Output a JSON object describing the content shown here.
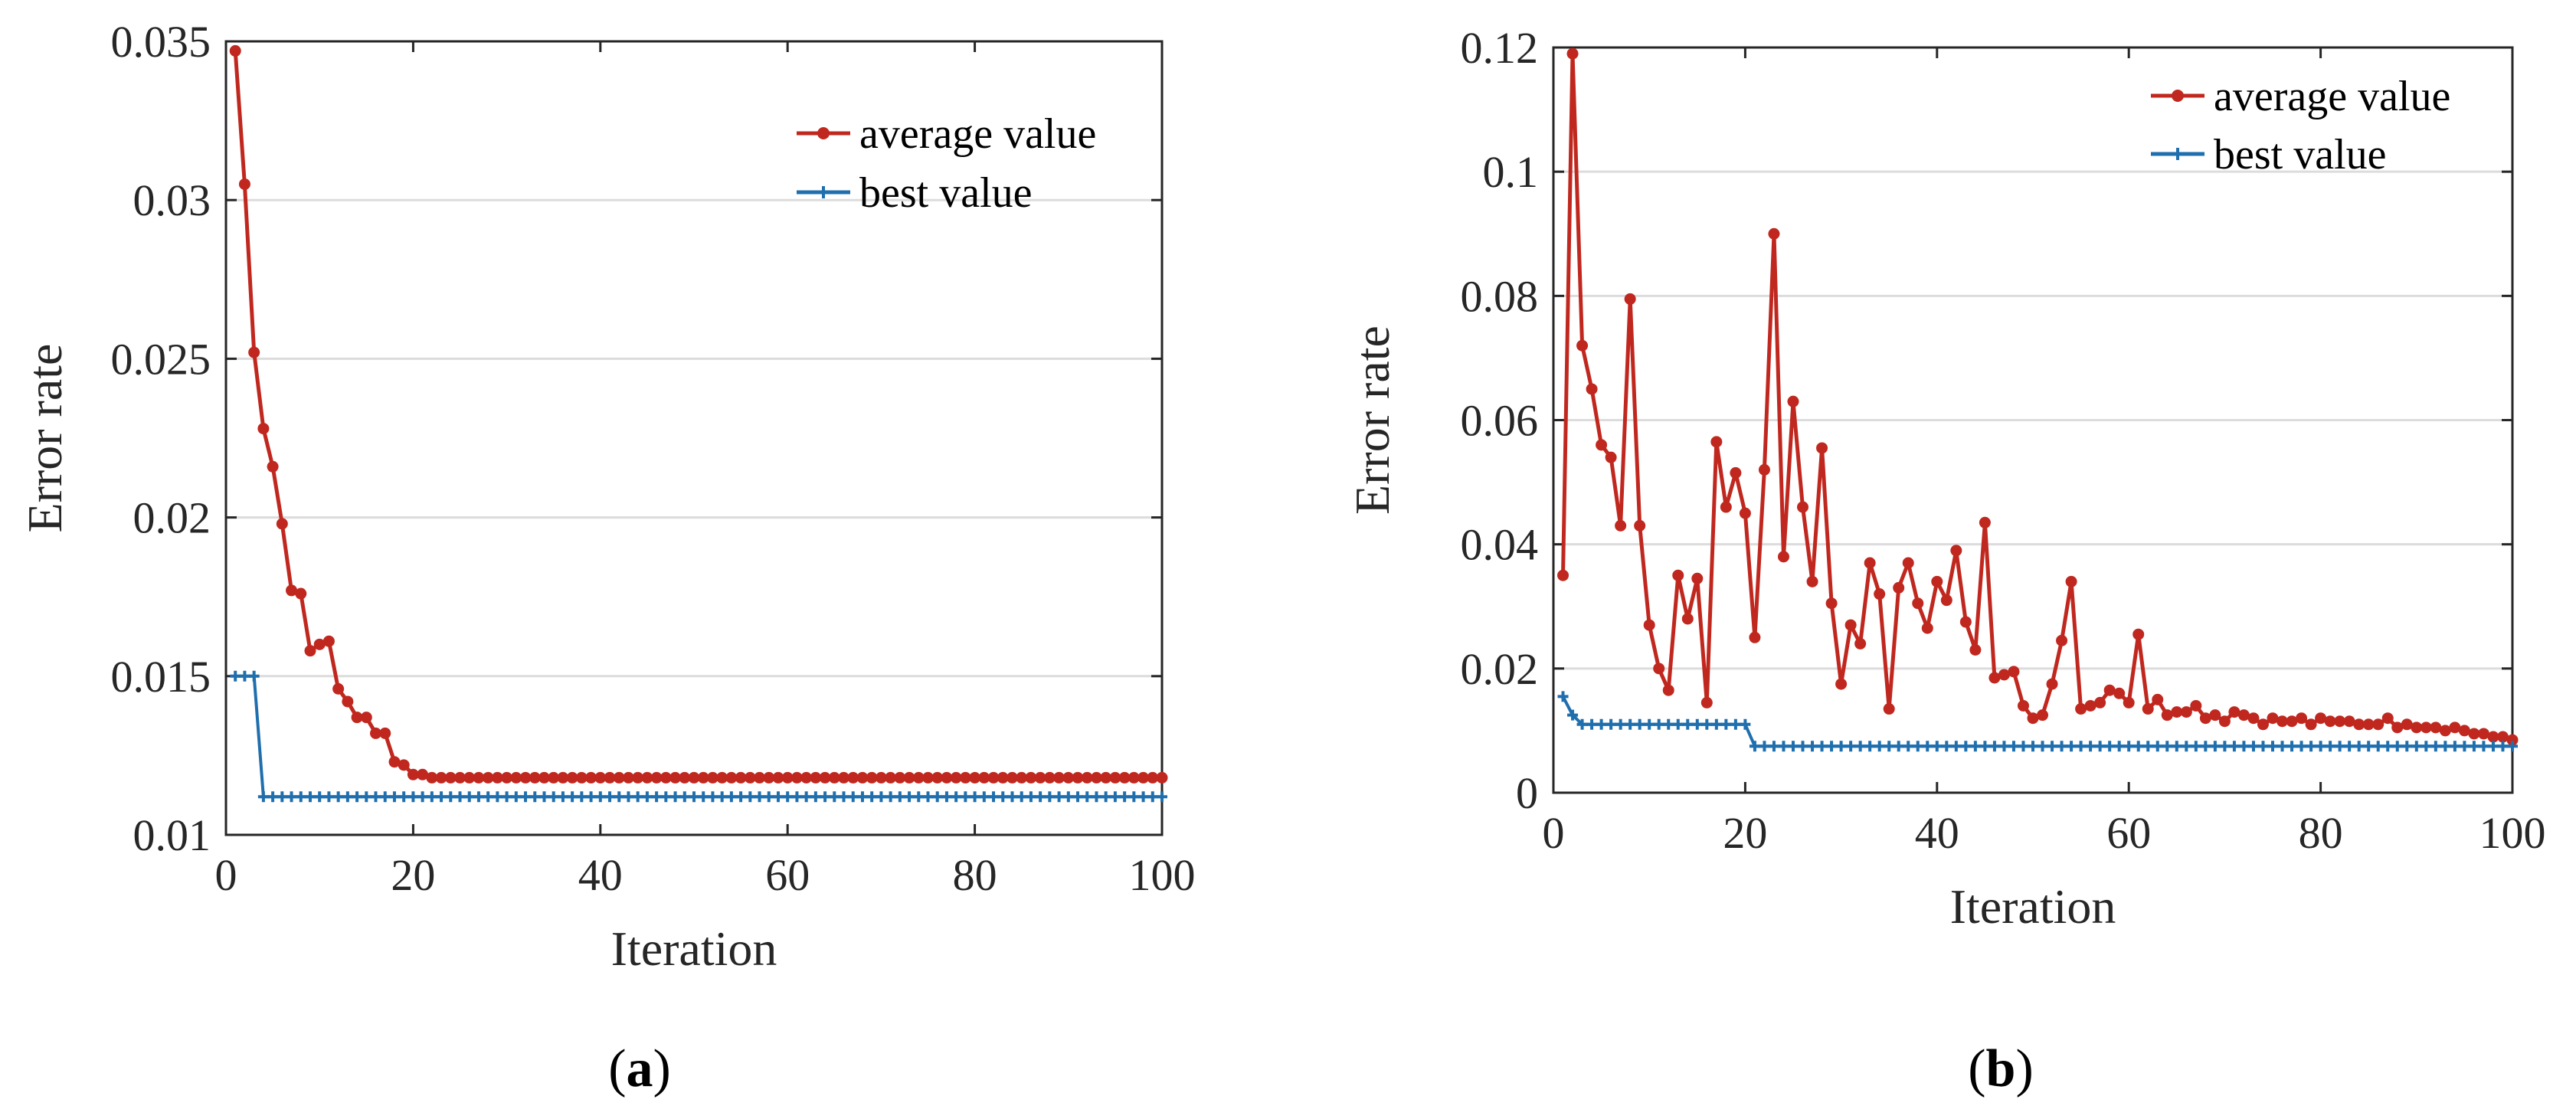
{
  "chart_data": [
    {
      "type": "line",
      "caption_letter": "a",
      "xlabel": "Iteration",
      "ylabel": "Error rate",
      "xlim": [
        0,
        100
      ],
      "ylim": [
        0.01,
        0.035
      ],
      "xticks": [
        "0",
        "20",
        "40",
        "60",
        "80",
        "100"
      ],
      "yticks": [
        "0.01",
        "0.015",
        "0.02",
        "0.025",
        "0.03",
        "0.035"
      ],
      "grid": "horizontal",
      "legend_position": "top-right",
      "series": [
        {
          "name": "average value",
          "color": "#C0281F",
          "marker": "dot",
          "x": [
            1,
            2,
            3,
            4,
            5,
            6,
            7,
            8,
            9,
            10,
            11,
            12,
            13,
            14,
            15,
            16,
            17,
            18,
            19,
            20,
            21,
            22,
            23,
            24,
            25,
            26,
            27,
            28,
            29,
            30,
            31,
            32,
            33,
            34,
            35,
            36,
            37,
            38,
            39,
            40,
            41,
            42,
            43,
            44,
            45,
            46,
            47,
            48,
            49,
            50,
            51,
            52,
            53,
            54,
            55,
            56,
            57,
            58,
            59,
            60,
            61,
            62,
            63,
            64,
            65,
            66,
            67,
            68,
            69,
            70,
            71,
            72,
            73,
            74,
            75,
            76,
            77,
            78,
            79,
            80,
            81,
            82,
            83,
            84,
            85,
            86,
            87,
            88,
            89,
            90,
            91,
            92,
            93,
            94,
            95,
            96,
            97,
            98,
            99,
            100
          ],
          "y": [
            0.0347,
            0.0305,
            0.0252,
            0.0228,
            0.0216,
            0.0198,
            0.0177,
            0.0176,
            0.0158,
            0.016,
            0.0161,
            0.0146,
            0.0142,
            0.0137,
            0.0137,
            0.0132,
            0.0132,
            0.0123,
            0.0122,
            0.0119,
            0.0119,
            0.0118,
            0.0118,
            0.0118,
            0.0118,
            0.0118,
            0.0118,
            0.0118,
            0.0118,
            0.0118,
            0.0118,
            0.0118,
            0.0118,
            0.0118,
            0.0118,
            0.0118,
            0.0118,
            0.0118,
            0.0118,
            0.0118,
            0.0118,
            0.0118,
            0.0118,
            0.0118,
            0.0118,
            0.0118,
            0.0118,
            0.0118,
            0.0118,
            0.0118,
            0.0118,
            0.0118,
            0.0118,
            0.0118,
            0.0118,
            0.0118,
            0.0118,
            0.0118,
            0.0118,
            0.0118,
            0.0118,
            0.0118,
            0.0118,
            0.0118,
            0.0118,
            0.0118,
            0.0118,
            0.0118,
            0.0118,
            0.0118,
            0.0118,
            0.0118,
            0.0118,
            0.0118,
            0.0118,
            0.0118,
            0.0118,
            0.0118,
            0.0118,
            0.0118,
            0.0118,
            0.0118,
            0.0118,
            0.0118,
            0.0118,
            0.0118,
            0.0118,
            0.0118,
            0.0118,
            0.0118,
            0.0118,
            0.0118,
            0.0118,
            0.0118,
            0.0118,
            0.0118,
            0.0118,
            0.0118,
            0.0118,
            0.0118
          ]
        },
        {
          "name": "best value",
          "color": "#1F6FAE",
          "marker": "plus",
          "x": [
            1,
            2,
            3,
            4,
            5,
            6,
            7,
            8,
            9,
            10,
            11,
            12,
            13,
            14,
            15,
            16,
            17,
            18,
            19,
            20,
            21,
            22,
            23,
            24,
            25,
            26,
            27,
            28,
            29,
            30,
            31,
            32,
            33,
            34,
            35,
            36,
            37,
            38,
            39,
            40,
            41,
            42,
            43,
            44,
            45,
            46,
            47,
            48,
            49,
            50,
            51,
            52,
            53,
            54,
            55,
            56,
            57,
            58,
            59,
            60,
            61,
            62,
            63,
            64,
            65,
            66,
            67,
            68,
            69,
            70,
            71,
            72,
            73,
            74,
            75,
            76,
            77,
            78,
            79,
            80,
            81,
            82,
            83,
            84,
            85,
            86,
            87,
            88,
            89,
            90,
            91,
            92,
            93,
            94,
            95,
            96,
            97,
            98,
            99,
            100
          ],
          "y": [
            0.015,
            0.015,
            0.015,
            0.0112,
            0.0112,
            0.0112,
            0.0112,
            0.0112,
            0.0112,
            0.0112,
            0.0112,
            0.0112,
            0.0112,
            0.0112,
            0.0112,
            0.0112,
            0.0112,
            0.0112,
            0.0112,
            0.0112,
            0.0112,
            0.0112,
            0.0112,
            0.0112,
            0.0112,
            0.0112,
            0.0112,
            0.0112,
            0.0112,
            0.0112,
            0.0112,
            0.0112,
            0.0112,
            0.0112,
            0.0112,
            0.0112,
            0.0112,
            0.0112,
            0.0112,
            0.0112,
            0.0112,
            0.0112,
            0.0112,
            0.0112,
            0.0112,
            0.0112,
            0.0112,
            0.0112,
            0.0112,
            0.0112,
            0.0112,
            0.0112,
            0.0112,
            0.0112,
            0.0112,
            0.0112,
            0.0112,
            0.0112,
            0.0112,
            0.0112,
            0.0112,
            0.0112,
            0.0112,
            0.0112,
            0.0112,
            0.0112,
            0.0112,
            0.0112,
            0.0112,
            0.0112,
            0.0112,
            0.0112,
            0.0112,
            0.0112,
            0.0112,
            0.0112,
            0.0112,
            0.0112,
            0.0112,
            0.0112,
            0.0112,
            0.0112,
            0.0112,
            0.0112,
            0.0112,
            0.0112,
            0.0112,
            0.0112,
            0.0112,
            0.0112,
            0.0112,
            0.0112,
            0.0112,
            0.0112,
            0.0112,
            0.0112,
            0.0112,
            0.0112,
            0.0112,
            0.0112
          ]
        }
      ]
    },
    {
      "type": "line",
      "caption_letter": "b",
      "xlabel": "Iteration",
      "ylabel": "Error rate",
      "xlim": [
        0,
        100
      ],
      "ylim": [
        0,
        0.12
      ],
      "xticks": [
        "0",
        "20",
        "40",
        "60",
        "80",
        "100"
      ],
      "yticks": [
        "0",
        "0.02",
        "0.04",
        "0.06",
        "0.08",
        "0.1",
        "0.12"
      ],
      "grid": "horizontal",
      "legend_position": "top-right",
      "series": [
        {
          "name": "average value",
          "color": "#C0281F",
          "marker": "dot",
          "x": [
            1,
            2,
            3,
            4,
            5,
            6,
            7,
            8,
            9,
            10,
            11,
            12,
            13,
            14,
            15,
            16,
            17,
            18,
            19,
            20,
            21,
            22,
            23,
            24,
            25,
            26,
            27,
            28,
            29,
            30,
            31,
            32,
            33,
            34,
            35,
            36,
            37,
            38,
            39,
            40,
            41,
            42,
            43,
            44,
            45,
            46,
            47,
            48,
            49,
            50,
            51,
            52,
            53,
            54,
            55,
            56,
            57,
            58,
            59,
            60,
            61,
            62,
            63,
            64,
            65,
            66,
            67,
            68,
            69,
            70,
            71,
            72,
            73,
            74,
            75,
            76,
            77,
            78,
            79,
            80,
            81,
            82,
            83,
            84,
            85,
            86,
            87,
            88,
            89,
            90,
            91,
            92,
            93,
            94,
            95,
            96,
            97,
            98,
            99,
            100
          ],
          "y": [
            0.035,
            0.119,
            0.072,
            0.065,
            0.056,
            0.054,
            0.043,
            0.0795,
            0.043,
            0.027,
            0.02,
            0.0165,
            0.035,
            0.028,
            0.0345,
            0.0145,
            0.0565,
            0.046,
            0.0515,
            0.045,
            0.025,
            0.052,
            0.09,
            0.038,
            0.063,
            0.046,
            0.034,
            0.0555,
            0.0305,
            0.0175,
            0.027,
            0.024,
            0.037,
            0.032,
            0.0135,
            0.033,
            0.037,
            0.0305,
            0.0265,
            0.034,
            0.031,
            0.039,
            0.0275,
            0.023,
            0.0435,
            0.0185,
            0.019,
            0.0195,
            0.014,
            0.012,
            0.0125,
            0.0175,
            0.0245,
            0.034,
            0.0135,
            0.014,
            0.0145,
            0.0165,
            0.016,
            0.0145,
            0.0255,
            0.0135,
            0.015,
            0.0125,
            0.013,
            0.013,
            0.014,
            0.012,
            0.0125,
            0.0115,
            0.013,
            0.0125,
            0.012,
            0.011,
            0.012,
            0.0115,
            0.0115,
            0.012,
            0.011,
            0.012,
            0.0115,
            0.0115,
            0.0115,
            0.011,
            0.011,
            0.011,
            0.012,
            0.0105,
            0.011,
            0.0105,
            0.0105,
            0.0105,
            0.01,
            0.0105,
            0.01,
            0.0095,
            0.0095,
            0.009,
            0.009,
            0.0085
          ]
        },
        {
          "name": "best value",
          "color": "#1F6FAE",
          "marker": "plus",
          "x": [
            1,
            2,
            3,
            4,
            5,
            6,
            7,
            8,
            9,
            10,
            11,
            12,
            13,
            14,
            15,
            16,
            17,
            18,
            19,
            20,
            21,
            22,
            23,
            24,
            25,
            26,
            27,
            28,
            29,
            30,
            31,
            32,
            33,
            34,
            35,
            36,
            37,
            38,
            39,
            40,
            41,
            42,
            43,
            44,
            45,
            46,
            47,
            48,
            49,
            50,
            51,
            52,
            53,
            54,
            55,
            56,
            57,
            58,
            59,
            60,
            61,
            62,
            63,
            64,
            65,
            66,
            67,
            68,
            69,
            70,
            71,
            72,
            73,
            74,
            75,
            76,
            77,
            78,
            79,
            80,
            81,
            82,
            83,
            84,
            85,
            86,
            87,
            88,
            89,
            90,
            91,
            92,
            93,
            94,
            95,
            96,
            97,
            98,
            99,
            100
          ],
          "y": [
            0.0155,
            0.0125,
            0.011,
            0.011,
            0.011,
            0.011,
            0.011,
            0.011,
            0.011,
            0.011,
            0.011,
            0.011,
            0.011,
            0.011,
            0.011,
            0.011,
            0.011,
            0.011,
            0.011,
            0.011,
            0.0075,
            0.0075,
            0.0075,
            0.0075,
            0.0075,
            0.0075,
            0.0075,
            0.0075,
            0.0075,
            0.0075,
            0.0075,
            0.0075,
            0.0075,
            0.0075,
            0.0075,
            0.0075,
            0.0075,
            0.0075,
            0.0075,
            0.0075,
            0.0075,
            0.0075,
            0.0075,
            0.0075,
            0.0075,
            0.0075,
            0.0075,
            0.0075,
            0.0075,
            0.0075,
            0.0075,
            0.0075,
            0.0075,
            0.0075,
            0.0075,
            0.0075,
            0.0075,
            0.0075,
            0.0075,
            0.0075,
            0.0075,
            0.0075,
            0.0075,
            0.0075,
            0.0075,
            0.0075,
            0.0075,
            0.0075,
            0.0075,
            0.0075,
            0.0075,
            0.0075,
            0.0075,
            0.0075,
            0.0075,
            0.0075,
            0.0075,
            0.0075,
            0.0075,
            0.0075,
            0.0075,
            0.0075,
            0.0075,
            0.0075,
            0.0075,
            0.0075,
            0.0075,
            0.0075,
            0.0075,
            0.0075,
            0.0075,
            0.0075,
            0.0075,
            0.0075,
            0.0075,
            0.0075,
            0.0075,
            0.0075,
            0.0075,
            0.0075
          ]
        }
      ]
    }
  ]
}
